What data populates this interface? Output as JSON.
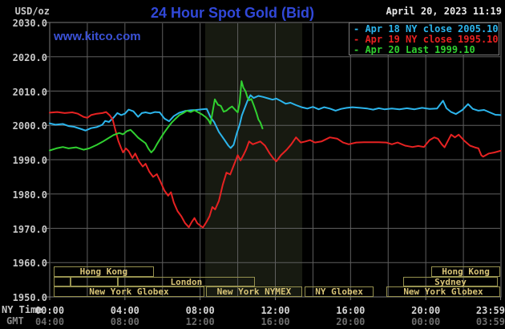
{
  "header": {
    "unit": "USD/oz",
    "title": "24 Hour Spot Gold (Bid)",
    "datetime": "April 20, 2023 11:19",
    "watermark": "www.kitco.com"
  },
  "colors": {
    "title_blue": "#3148d8",
    "watermark_blue": "#3b52d8",
    "apr18_cyan": "#2cb5ec",
    "apr19_red": "#e62222",
    "apr20_green": "#30d030",
    "grid": "#5f5f5f",
    "plot_border": "#7a7a7a",
    "nymex_shade": "#171a11",
    "session_border": "#96914f",
    "session_text": "#d8c477",
    "axis_text": "#c8c8c8",
    "ny_time_text": "#d4d4d4",
    "gmt_text": "#6e6e6e",
    "gmt_row_label_text": "#8c8c8c",
    "date_text": "#e8e8e8"
  },
  "legend": {
    "items": [
      {
        "label": "Apr 18 NY close 2005.10",
        "color": "#2cb5ec"
      },
      {
        "label": "Apr 19 NY close 1995.10",
        "color": "#e62222"
      },
      {
        "label": "Apr 20 Last 1999.10",
        "color": "#30d030"
      }
    ]
  },
  "axes": {
    "ny_row_label": "NY Time",
    "gmt_row_label": "GMT",
    "y_ticks": [
      "2030.0",
      "2020.0",
      "2010.0",
      "2000.0",
      "1990.0",
      "1980.0",
      "1970.0",
      "1960.0",
      "1950.0"
    ],
    "x_ticks": [
      {
        "t": 0,
        "ny": "00:00",
        "gmt": "04:00"
      },
      {
        "t": 4,
        "ny": "04:00",
        "gmt": "08:00"
      },
      {
        "t": 8,
        "ny": "08:00",
        "gmt": "12:00"
      },
      {
        "t": 12,
        "ny": "12:00",
        "gmt": "16:00"
      },
      {
        "t": 16,
        "ny": "16:00",
        "gmt": "20:00"
      },
      {
        "t": 20,
        "ny": "20:00",
        "gmt": "00:00"
      },
      {
        "t": 23.983,
        "ny": "23:59",
        "gmt": "03:59"
      }
    ]
  },
  "chart_data": {
    "type": "line",
    "title": "24 Hour Spot Gold (Bid)",
    "ylabel": "USD/oz",
    "y_axis": {
      "min": 1950,
      "max": 2030,
      "step": 10
    },
    "x_axis": {
      "hours": [
        0,
        24
      ],
      "gridline_every_hours": 2,
      "label_every_hours": 4
    },
    "nymex_session_shade": {
      "start_hour": 8.27,
      "end_hour": 13.43
    },
    "series": [
      {
        "name": "Apr 18 NY close 2005.10",
        "color": "#2cb5ec",
        "points": [
          [
            0,
            2000.6
          ],
          [
            0.3,
            2000.2
          ],
          [
            0.7,
            2000.4
          ],
          [
            1,
            1999.8
          ],
          [
            1.3,
            1999.6
          ],
          [
            1.7,
            1998.9
          ],
          [
            1.9,
            1998.5
          ],
          [
            2.2,
            1999.2
          ],
          [
            2.5,
            1999.5
          ],
          [
            2.8,
            2000.2
          ],
          [
            2.95,
            2001.3
          ],
          [
            3.15,
            2001.0
          ],
          [
            3.4,
            2002.3
          ],
          [
            3.6,
            2003.6
          ],
          [
            3.8,
            2003.0
          ],
          [
            4.0,
            2003.4
          ],
          [
            4.2,
            2004.6
          ],
          [
            4.45,
            2004.1
          ],
          [
            4.7,
            2002.5
          ],
          [
            4.9,
            2003.6
          ],
          [
            5.1,
            2003.8
          ],
          [
            5.35,
            2003.5
          ],
          [
            5.6,
            2003.9
          ],
          [
            5.85,
            2003.8
          ],
          [
            6.1,
            2002.0
          ],
          [
            6.35,
            2001.2
          ],
          [
            6.6,
            2002.7
          ],
          [
            6.9,
            2003.7
          ],
          [
            7.2,
            2004.2
          ],
          [
            7.5,
            2004.4
          ],
          [
            7.8,
            2004.5
          ],
          [
            8.1,
            2004.7
          ],
          [
            8.35,
            2004.8
          ],
          [
            8.55,
            2002.4
          ],
          [
            8.75,
            2000.9
          ],
          [
            9.0,
            1998.1
          ],
          [
            9.3,
            1995.7
          ],
          [
            9.5,
            1994.1
          ],
          [
            9.62,
            1993.4
          ],
          [
            9.78,
            1994.3
          ],
          [
            9.95,
            1997.7
          ],
          [
            10.1,
            2000.1
          ],
          [
            10.22,
            2002.9
          ],
          [
            10.38,
            2005.2
          ],
          [
            10.52,
            2007.2
          ],
          [
            10.68,
            2008.8
          ],
          [
            10.85,
            2008.0
          ],
          [
            11.1,
            2008.6
          ],
          [
            11.35,
            2008.3
          ],
          [
            11.6,
            2007.9
          ],
          [
            11.85,
            2007.5
          ],
          [
            12.05,
            2007.8
          ],
          [
            12.3,
            2007.1
          ],
          [
            12.55,
            2006.3
          ],
          [
            12.8,
            2006.6
          ],
          [
            13.1,
            2005.9
          ],
          [
            13.4,
            2005.3
          ],
          [
            13.7,
            2004.9
          ],
          [
            14.0,
            2005.4
          ],
          [
            14.3,
            2004.7
          ],
          [
            14.6,
            2005.3
          ],
          [
            14.9,
            2004.9
          ],
          [
            15.2,
            2004.3
          ],
          [
            15.5,
            2004.8
          ],
          [
            15.8,
            2005.1
          ],
          [
            16.1,
            2005.3
          ],
          [
            16.5,
            2005.1
          ],
          [
            16.9,
            2004.9
          ],
          [
            17.2,
            2004.6
          ],
          [
            17.5,
            2005.0
          ],
          [
            17.8,
            2004.7
          ],
          [
            18.2,
            2004.9
          ],
          [
            18.6,
            2004.7
          ],
          [
            19.0,
            2005.0
          ],
          [
            19.4,
            2004.7
          ],
          [
            19.8,
            2005.1
          ],
          [
            20.2,
            2004.8
          ],
          [
            20.6,
            2004.9
          ],
          [
            20.92,
            2007.2
          ],
          [
            21.1,
            2005.0
          ],
          [
            21.35,
            2003.9
          ],
          [
            21.6,
            2003.3
          ],
          [
            21.95,
            2004.5
          ],
          [
            22.25,
            2006.2
          ],
          [
            22.5,
            2004.8
          ],
          [
            22.8,
            2004.3
          ],
          [
            23.1,
            2004.5
          ],
          [
            23.4,
            2003.8
          ],
          [
            23.7,
            2003.1
          ],
          [
            23.98,
            2003.0
          ]
        ]
      },
      {
        "name": "Apr 19 NY close 1995.10",
        "color": "#e62222",
        "points": [
          [
            0,
            2003.7
          ],
          [
            0.4,
            2003.9
          ],
          [
            0.8,
            2003.6
          ],
          [
            1.2,
            2003.8
          ],
          [
            1.5,
            2003.4
          ],
          [
            1.8,
            2002.5
          ],
          [
            2.0,
            2002.2
          ],
          [
            2.2,
            2003.0
          ],
          [
            2.5,
            2003.4
          ],
          [
            2.8,
            2003.6
          ],
          [
            3.0,
            2003.9
          ],
          [
            3.2,
            2002.9
          ],
          [
            3.35,
            2001.7
          ],
          [
            3.5,
            1998.5
          ],
          [
            3.65,
            1995.5
          ],
          [
            3.8,
            1993.4
          ],
          [
            3.9,
            1992.1
          ],
          [
            4.05,
            1993.3
          ],
          [
            4.2,
            1992.5
          ],
          [
            4.4,
            1990.5
          ],
          [
            4.55,
            1991.8
          ],
          [
            4.75,
            1989.5
          ],
          [
            4.95,
            1988.0
          ],
          [
            5.1,
            1988.8
          ],
          [
            5.3,
            1986.5
          ],
          [
            5.5,
            1985.0
          ],
          [
            5.7,
            1985.8
          ],
          [
            5.9,
            1983.5
          ],
          [
            6.1,
            1981.0
          ],
          [
            6.3,
            1979.5
          ],
          [
            6.45,
            1980.5
          ],
          [
            6.6,
            1977.5
          ],
          [
            6.8,
            1975.0
          ],
          [
            7.0,
            1973.5
          ],
          [
            7.2,
            1971.5
          ],
          [
            7.4,
            1970.3
          ],
          [
            7.55,
            1971.8
          ],
          [
            7.7,
            1973.0
          ],
          [
            7.85,
            1971.5
          ],
          [
            8.0,
            1970.8
          ],
          [
            8.15,
            1970.2
          ],
          [
            8.35,
            1972.0
          ],
          [
            8.5,
            1973.5
          ],
          [
            8.65,
            1976.2
          ],
          [
            8.8,
            1975.5
          ],
          [
            9.0,
            1978.0
          ],
          [
            9.2,
            1982.6
          ],
          [
            9.4,
            1986.2
          ],
          [
            9.6,
            1985.7
          ],
          [
            9.8,
            1988.5
          ],
          [
            10.0,
            1991.3
          ],
          [
            10.15,
            1989.8
          ],
          [
            10.3,
            1991.3
          ],
          [
            10.45,
            1993.0
          ],
          [
            10.6,
            1995.3
          ],
          [
            10.8,
            1994.5
          ],
          [
            11.0,
            1994.9
          ],
          [
            11.2,
            1995.3
          ],
          [
            11.45,
            1994.1
          ],
          [
            11.7,
            1991.8
          ],
          [
            11.9,
            1990.3
          ],
          [
            12.05,
            1989.5
          ],
          [
            12.3,
            1991.3
          ],
          [
            12.6,
            1992.9
          ],
          [
            12.85,
            1994.5
          ],
          [
            13.1,
            1996.5
          ],
          [
            13.35,
            1995.0
          ],
          [
            13.6,
            1995.3
          ],
          [
            13.85,
            1995.7
          ],
          [
            14.1,
            1995.0
          ],
          [
            14.45,
            1995.3
          ],
          [
            14.9,
            1996.5
          ],
          [
            15.3,
            1996.1
          ],
          [
            15.6,
            1995.0
          ],
          [
            15.9,
            1994.5
          ],
          [
            16.3,
            1995.0
          ],
          [
            16.7,
            1995.1
          ],
          [
            17.1,
            1995.1
          ],
          [
            17.5,
            1995.1
          ],
          [
            17.9,
            1995.0
          ],
          [
            18.2,
            1994.5
          ],
          [
            18.5,
            1995.0
          ],
          [
            18.9,
            1994.1
          ],
          [
            19.3,
            1993.7
          ],
          [
            19.6,
            1994.0
          ],
          [
            19.9,
            1993.7
          ],
          [
            20.2,
            1995.7
          ],
          [
            20.45,
            1996.5
          ],
          [
            20.65,
            1996.1
          ],
          [
            20.85,
            1994.5
          ],
          [
            21.0,
            1993.6
          ],
          [
            21.35,
            1997.3
          ],
          [
            21.55,
            1996.5
          ],
          [
            21.75,
            1997.3
          ],
          [
            22.05,
            1995.5
          ],
          [
            22.35,
            1994.1
          ],
          [
            22.6,
            1993.6
          ],
          [
            22.8,
            1993.3
          ],
          [
            22.95,
            1991.3
          ],
          [
            23.05,
            1990.9
          ],
          [
            23.35,
            1991.8
          ],
          [
            23.65,
            1992.1
          ],
          [
            23.98,
            1992.6
          ]
        ]
      },
      {
        "name": "Apr 20 Last 1999.10",
        "color": "#30d030",
        "points": [
          [
            0,
            1992.7
          ],
          [
            0.35,
            1993.3
          ],
          [
            0.7,
            1993.7
          ],
          [
            1.0,
            1993.3
          ],
          [
            1.4,
            1993.6
          ],
          [
            1.8,
            1992.9
          ],
          [
            2.1,
            1993.3
          ],
          [
            2.5,
            1994.3
          ],
          [
            2.8,
            1995.2
          ],
          [
            3.1,
            1996.2
          ],
          [
            3.4,
            1997.2
          ],
          [
            3.7,
            1997.8
          ],
          [
            3.9,
            1997.4
          ],
          [
            4.1,
            1998.3
          ],
          [
            4.3,
            1998.7
          ],
          [
            4.5,
            1997.6
          ],
          [
            4.7,
            1996.4
          ],
          [
            4.9,
            1995.6
          ],
          [
            5.1,
            1994.8
          ],
          [
            5.25,
            1993.2
          ],
          [
            5.4,
            1992.1
          ],
          [
            5.55,
            1993.0
          ],
          [
            5.7,
            1994.5
          ],
          [
            5.9,
            1996.3
          ],
          [
            6.1,
            1998.0
          ],
          [
            6.3,
            1999.5
          ],
          [
            6.5,
            2000.9
          ],
          [
            6.7,
            2002.0
          ],
          [
            6.9,
            2003.0
          ],
          [
            7.1,
            2003.6
          ],
          [
            7.3,
            2004.3
          ],
          [
            7.5,
            2003.9
          ],
          [
            7.7,
            2004.4
          ],
          [
            7.9,
            2003.8
          ],
          [
            8.1,
            2003.2
          ],
          [
            8.3,
            2002.4
          ],
          [
            8.45,
            2001.5
          ],
          [
            8.55,
            2000.4
          ],
          [
            8.65,
            2003.5
          ],
          [
            8.78,
            2007.6
          ],
          [
            8.95,
            2006.0
          ],
          [
            9.1,
            2005.7
          ],
          [
            9.25,
            2004.0
          ],
          [
            9.4,
            2004.3
          ],
          [
            9.55,
            2005.0
          ],
          [
            9.7,
            2005.5
          ],
          [
            9.85,
            2004.6
          ],
          [
            10.0,
            2003.8
          ],
          [
            10.1,
            2006.5
          ],
          [
            10.2,
            2012.9
          ],
          [
            10.3,
            2011.0
          ],
          [
            10.42,
            2009.9
          ],
          [
            10.52,
            2008.1
          ],
          [
            10.62,
            2007.3
          ],
          [
            10.72,
            2007.7
          ],
          [
            10.85,
            2005.9
          ],
          [
            11.0,
            2003.6
          ],
          [
            11.1,
            2001.7
          ],
          [
            11.2,
            2000.9
          ],
          [
            11.32,
            1999.1
          ]
        ]
      }
    ],
    "market_sessions": [
      {
        "row": 1,
        "label": "Hong Kong",
        "start_hour": 0.21,
        "end_hour": 5.54
      },
      {
        "row": 1,
        "label": "Hong Kong",
        "start_hour": 20.29,
        "end_hour": 23.96
      },
      {
        "row": 2,
        "label": "",
        "start_hour": 0.21,
        "end_hour": 1.11
      },
      {
        "row": 2,
        "label": "",
        "start_hour": 1.11,
        "end_hour": 3.62
      },
      {
        "row": 2,
        "label": "London",
        "start_hour": 3.62,
        "end_hour": 10.91
      },
      {
        "row": 2,
        "label": "Sydney",
        "start_hour": 18.8,
        "end_hour": 23.83
      },
      {
        "row": 3,
        "label": "New York Globex",
        "start_hour": 0.21,
        "end_hour": 8.23
      },
      {
        "row": 3,
        "label": "New York NYMEX",
        "start_hour": 8.31,
        "end_hour": 13.43
      },
      {
        "row": 3,
        "label": "NY Globex",
        "start_hour": 13.56,
        "end_hour": 17.22
      },
      {
        "row": 3,
        "label": "New York Globex",
        "start_hour": 17.9,
        "end_hour": 23.96
      }
    ]
  }
}
